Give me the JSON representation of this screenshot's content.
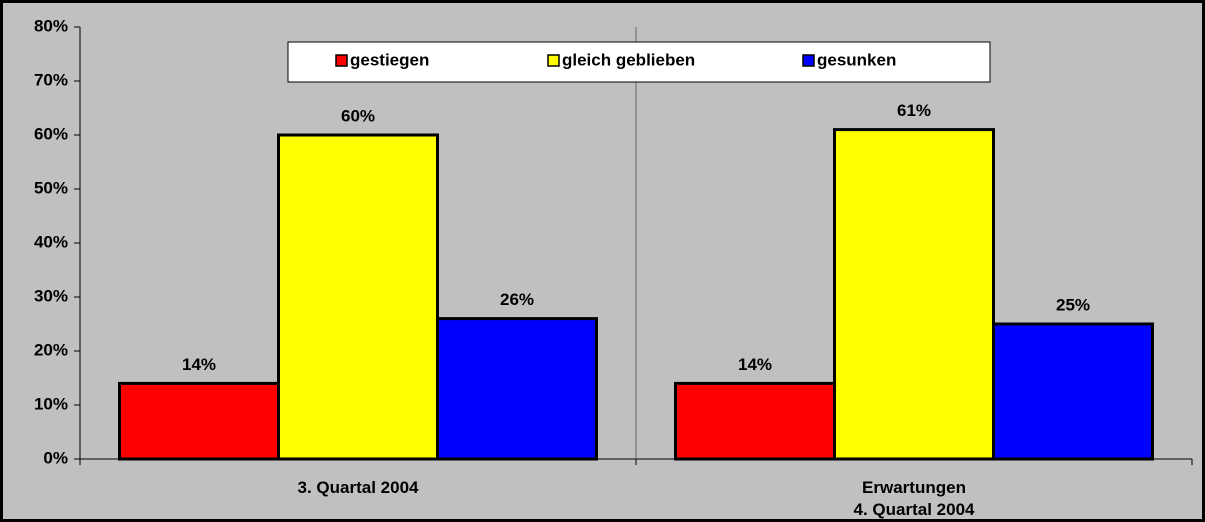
{
  "chart_data": {
    "type": "bar",
    "categories": [
      "3. Quartal 2004",
      "Erwartungen\n4. Quartal 2004"
    ],
    "series": [
      {
        "name": "gestiegen",
        "color": "#ff0000",
        "values": [
          14,
          14
        ],
        "value_labels": [
          "14%",
          "14%"
        ]
      },
      {
        "name": "gleich geblieben",
        "color": "#ffff00",
        "values": [
          60,
          61
        ],
        "value_labels": [
          "60%",
          "61%"
        ]
      },
      {
        "name": "gesunken",
        "color": "#0000ff",
        "values": [
          26,
          25
        ],
        "value_labels": [
          "26%",
          "25%"
        ]
      }
    ],
    "ylim": [
      0,
      80
    ],
    "yticks": [
      {
        "value": 0,
        "label": "0%"
      },
      {
        "value": 10,
        "label": "10%"
      },
      {
        "value": 20,
        "label": "20%"
      },
      {
        "value": 30,
        "label": "30%"
      },
      {
        "value": 40,
        "label": "40%"
      },
      {
        "value": 50,
        "label": "50%"
      },
      {
        "value": 60,
        "label": "60%"
      },
      {
        "value": 70,
        "label": "70%"
      },
      {
        "value": 80,
        "label": "80%"
      }
    ],
    "grid": false,
    "legend": "top"
  }
}
